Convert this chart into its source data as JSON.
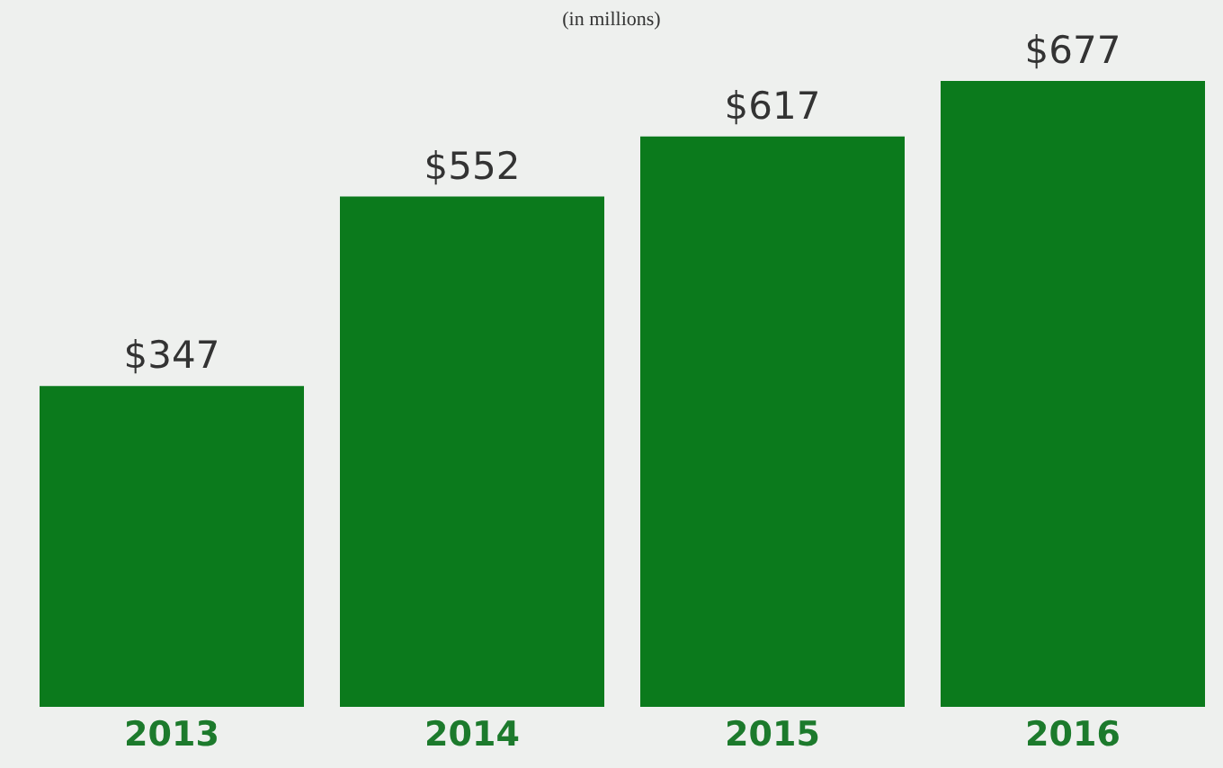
{
  "chart_data": {
    "type": "bar",
    "title": "(in millions)",
    "categories": [
      "2013",
      "2014",
      "2015",
      "2016"
    ],
    "values": [
      347,
      552,
      617,
      677
    ],
    "value_labels": [
      "$347",
      "$552",
      "$617",
      "$677"
    ],
    "color": "#0b7a1c"
  }
}
